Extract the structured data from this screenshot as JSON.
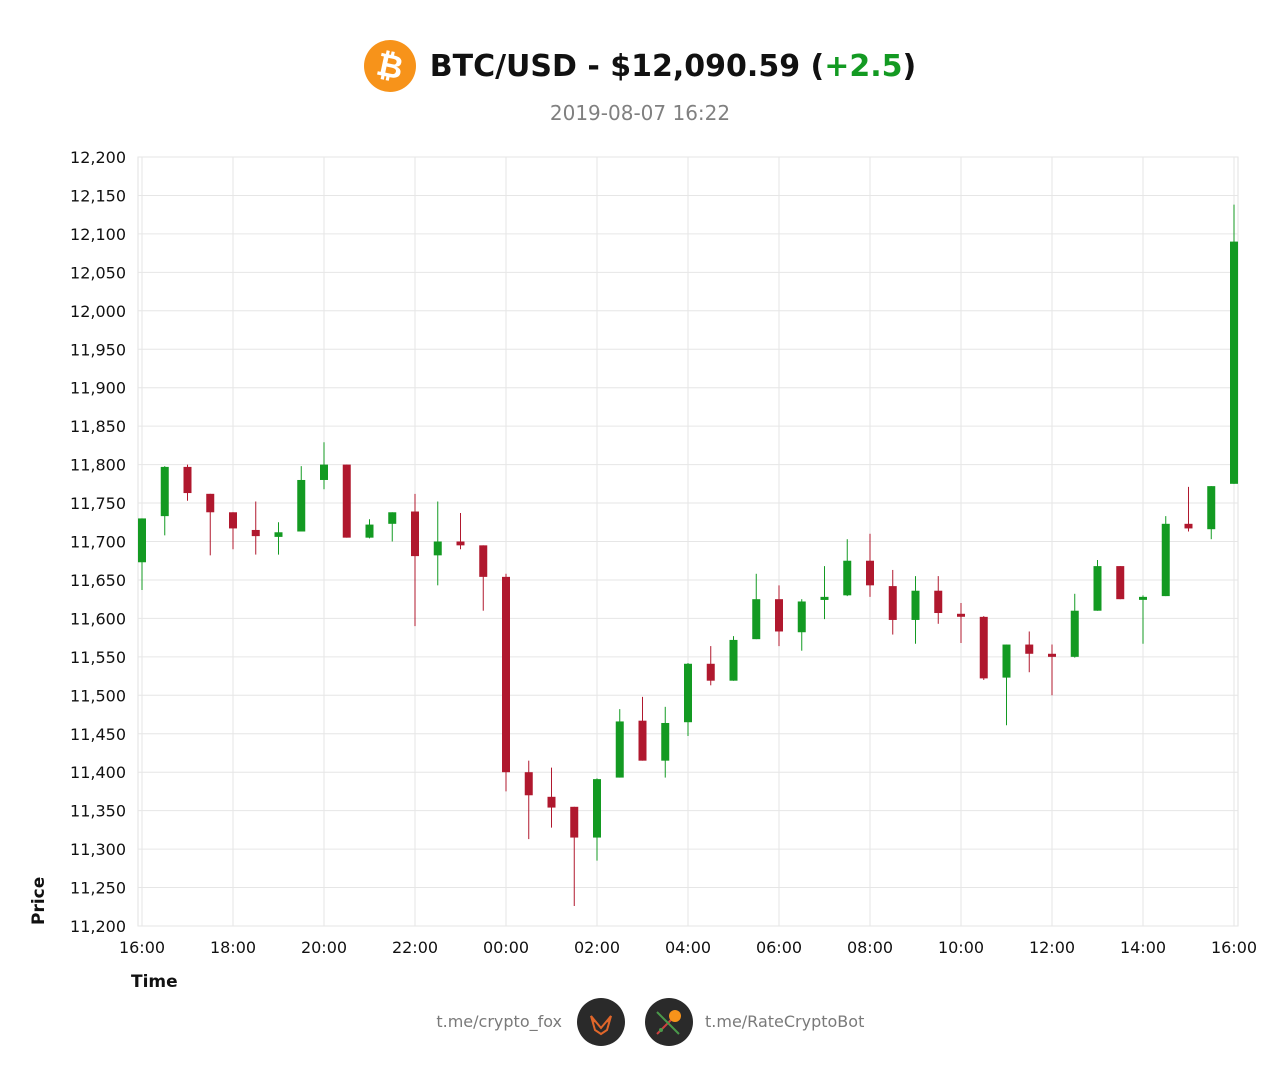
{
  "header": {
    "pair": "BTC/USD",
    "price_text": "$12,090.59",
    "change_text": "+2.5",
    "timestamp": "2019-08-07 16:22",
    "logo_icon": "bitcoin-icon"
  },
  "footer": {
    "left_link": "t.me/crypto_fox",
    "right_link": "t.me/RateCryptoBot",
    "left_avatar_icon": "fox-avatar-icon",
    "right_avatar_icon": "bot-avatar-icon"
  },
  "colors": {
    "up": "#139a22",
    "down": "#b0182e",
    "accent": "#f7931a"
  },
  "chart_data": {
    "type": "candlestick",
    "xlabel": "Time",
    "ylabel": "Price",
    "ylim": [
      11200,
      12200
    ],
    "ytick_step": 50,
    "grid": true,
    "x_ticks": [
      "16:00",
      "18:00",
      "20:00",
      "22:00",
      "00:00",
      "02:00",
      "04:00",
      "06:00",
      "08:00",
      "10:00",
      "12:00",
      "14:00",
      "16:00"
    ],
    "interval_minutes": 30,
    "candles": [
      {
        "t": "16:00",
        "o": 11673,
        "h": 11730,
        "l": 11637,
        "c": 11730
      },
      {
        "t": "16:30",
        "o": 11733,
        "h": 11798,
        "l": 11708,
        "c": 11797
      },
      {
        "t": "17:00",
        "o": 11797,
        "h": 11800,
        "l": 11753,
        "c": 11763
      },
      {
        "t": "17:30",
        "o": 11762,
        "h": 11762,
        "l": 11682,
        "c": 11738
      },
      {
        "t": "18:00",
        "o": 11738,
        "h": 11738,
        "l": 11690,
        "c": 11717
      },
      {
        "t": "18:30",
        "o": 11715,
        "h": 11752,
        "l": 11683,
        "c": 11707
      },
      {
        "t": "19:00",
        "o": 11706,
        "h": 11725,
        "l": 11683,
        "c": 11712
      },
      {
        "t": "19:30",
        "o": 11713,
        "h": 11798,
        "l": 11713,
        "c": 11780
      },
      {
        "t": "20:00",
        "o": 11780,
        "h": 11829,
        "l": 11768,
        "c": 11800
      },
      {
        "t": "20:30",
        "o": 11800,
        "h": 11800,
        "l": 11705,
        "c": 11705
      },
      {
        "t": "21:00",
        "o": 11705,
        "h": 11729,
        "l": 11704,
        "c": 11722
      },
      {
        "t": "21:30",
        "o": 11723,
        "h": 11738,
        "l": 11700,
        "c": 11738
      },
      {
        "t": "22:00",
        "o": 11739,
        "h": 11762,
        "l": 11590,
        "c": 11681
      },
      {
        "t": "22:30",
        "o": 11682,
        "h": 11752,
        "l": 11643,
        "c": 11700
      },
      {
        "t": "23:00",
        "o": 11700,
        "h": 11737,
        "l": 11690,
        "c": 11695
      },
      {
        "t": "23:30",
        "o": 11695,
        "h": 11695,
        "l": 11610,
        "c": 11654
      },
      {
        "t": "00:00",
        "o": 11654,
        "h": 11658,
        "l": 11375,
        "c": 11400
      },
      {
        "t": "00:30",
        "o": 11400,
        "h": 11415,
        "l": 11313,
        "c": 11370
      },
      {
        "t": "01:00",
        "o": 11368,
        "h": 11406,
        "l": 11328,
        "c": 11354
      },
      {
        "t": "01:30",
        "o": 11355,
        "h": 11355,
        "l": 11226,
        "c": 11315
      },
      {
        "t": "02:00",
        "o": 11315,
        "h": 11392,
        "l": 11285,
        "c": 11391
      },
      {
        "t": "02:30",
        "o": 11393,
        "h": 11482,
        "l": 11393,
        "c": 11466
      },
      {
        "t": "03:00",
        "o": 11467,
        "h": 11498,
        "l": 11415,
        "c": 11415
      },
      {
        "t": "03:30",
        "o": 11415,
        "h": 11485,
        "l": 11393,
        "c": 11464
      },
      {
        "t": "04:00",
        "o": 11465,
        "h": 11542,
        "l": 11447,
        "c": 11541
      },
      {
        "t": "04:30",
        "o": 11541,
        "h": 11564,
        "l": 11513,
        "c": 11519
      },
      {
        "t": "05:00",
        "o": 11519,
        "h": 11577,
        "l": 11519,
        "c": 11572
      },
      {
        "t": "05:30",
        "o": 11573,
        "h": 11658,
        "l": 11573,
        "c": 11625
      },
      {
        "t": "06:00",
        "o": 11625,
        "h": 11643,
        "l": 11564,
        "c": 11583
      },
      {
        "t": "06:30",
        "o": 11582,
        "h": 11625,
        "l": 11558,
        "c": 11622
      },
      {
        "t": "07:00",
        "o": 11624,
        "h": 11668,
        "l": 11599,
        "c": 11628
      },
      {
        "t": "07:30",
        "o": 11630,
        "h": 11703,
        "l": 11629,
        "c": 11675
      },
      {
        "t": "08:00",
        "o": 11675,
        "h": 11710,
        "l": 11628,
        "c": 11643
      },
      {
        "t": "08:30",
        "o": 11642,
        "h": 11663,
        "l": 11579,
        "c": 11598
      },
      {
        "t": "09:00",
        "o": 11598,
        "h": 11655,
        "l": 11567,
        "c": 11636
      },
      {
        "t": "09:30",
        "o": 11636,
        "h": 11655,
        "l": 11593,
        "c": 11607
      },
      {
        "t": "10:00",
        "o": 11606,
        "h": 11620,
        "l": 11568,
        "c": 11603
      },
      {
        "t": "10:30",
        "o": 11602,
        "h": 11603,
        "l": 11520,
        "c": 11522
      },
      {
        "t": "11:00",
        "o": 11523,
        "h": 11566,
        "l": 11461,
        "c": 11566
      },
      {
        "t": "11:30",
        "o": 11566,
        "h": 11583,
        "l": 11530,
        "c": 11554
      },
      {
        "t": "12:00",
        "o": 11554,
        "h": 11566,
        "l": 11500,
        "c": 11550
      },
      {
        "t": "12:30",
        "o": 11550,
        "h": 11632,
        "l": 11549,
        "c": 11610
      },
      {
        "t": "13:00",
        "o": 11610,
        "h": 11676,
        "l": 11610,
        "c": 11668
      },
      {
        "t": "13:30",
        "o": 11668,
        "h": 11668,
        "l": 11625,
        "c": 11625
      },
      {
        "t": "14:00",
        "o": 11626,
        "h": 11630,
        "l": 11567,
        "c": 11628
      },
      {
        "t": "14:30",
        "o": 11629,
        "h": 11733,
        "l": 11629,
        "c": 11723
      },
      {
        "t": "15:00",
        "o": 11723,
        "h": 11771,
        "l": 11713,
        "c": 11717
      },
      {
        "t": "15:30",
        "o": 11716,
        "h": 11772,
        "l": 11703,
        "c": 11772
      },
      {
        "t": "16:00",
        "o": 11775,
        "h": 12138,
        "l": 11775,
        "c": 12090
      }
    ]
  }
}
